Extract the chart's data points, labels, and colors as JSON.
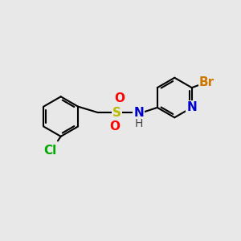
{
  "background_color": "#e8e8e8",
  "bond_color": "#000000",
  "bond_width": 1.5,
  "atom_labels": {
    "Cl": {
      "color": "#00aa00",
      "fontsize": 11,
      "fontweight": "bold"
    },
    "S": {
      "color": "#bbbb00",
      "fontsize": 11,
      "fontweight": "bold"
    },
    "O": {
      "color": "#ff0000",
      "fontsize": 11,
      "fontweight": "bold"
    },
    "N": {
      "color": "#0000cc",
      "fontsize": 11,
      "fontweight": "bold"
    },
    "H": {
      "color": "#444444",
      "fontsize": 10,
      "fontweight": "normal"
    },
    "Br": {
      "color": "#cc7700",
      "fontsize": 11,
      "fontweight": "bold"
    }
  },
  "figsize": [
    3.0,
    3.0
  ],
  "dpi": 100,
  "xlim": [
    0,
    12
  ],
  "ylim": [
    0,
    12
  ]
}
